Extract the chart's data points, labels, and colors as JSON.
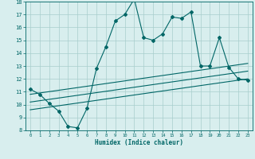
{
  "xlabel": "Humidex (Indice chaleur)",
  "x_values": [
    0,
    1,
    2,
    3,
    4,
    5,
    6,
    7,
    8,
    9,
    10,
    11,
    12,
    13,
    14,
    15,
    16,
    17,
    18,
    19,
    20,
    21,
    22,
    23
  ],
  "y_main": [
    11.2,
    10.8,
    10.1,
    9.5,
    8.3,
    8.2,
    9.7,
    12.8,
    14.5,
    16.5,
    17.0,
    18.2,
    15.2,
    15.0,
    15.5,
    16.8,
    16.7,
    17.2,
    13.0,
    13.0,
    15.2,
    12.9,
    12.0,
    11.9
  ],
  "y_line1_start": 10.8,
  "y_line1_end": 13.2,
  "y_line2_start": 10.2,
  "y_line2_end": 12.6,
  "y_line3_start": 9.6,
  "y_line3_end": 12.0,
  "ylim": [
    8,
    18
  ],
  "xlim_min": -0.5,
  "xlim_max": 23.5,
  "yticks": [
    8,
    9,
    10,
    11,
    12,
    13,
    14,
    15,
    16,
    17,
    18
  ],
  "xticks": [
    0,
    1,
    2,
    3,
    4,
    5,
    6,
    7,
    8,
    9,
    10,
    11,
    12,
    13,
    14,
    15,
    16,
    17,
    18,
    19,
    20,
    21,
    22,
    23
  ],
  "line_color": "#006666",
  "bg_color": "#d8eeee",
  "grid_color": "#a8cecc"
}
